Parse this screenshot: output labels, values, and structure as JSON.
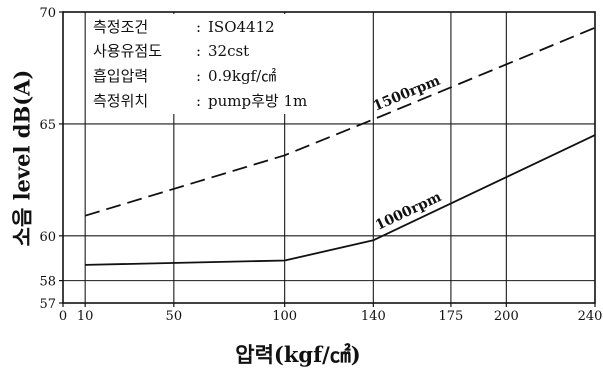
{
  "chart_data": {
    "type": "line",
    "xlabel": "압력(kgf/㎠)",
    "ylabel": "소음 level dB(A)",
    "xlim": [
      0,
      240
    ],
    "ylim": [
      57,
      70
    ],
    "x_ticks": [
      0,
      10,
      50,
      100,
      140,
      175,
      200,
      240
    ],
    "y_ticks": [
      57,
      58,
      60,
      65,
      70
    ],
    "grid": true,
    "series": [
      {
        "name": "1500rpm",
        "line_style": "dashed",
        "color": "#111111",
        "x": [
          10,
          100,
          140,
          240
        ],
        "y": [
          60.9,
          63.6,
          65.2,
          69.3
        ]
      },
      {
        "name": "1000rpm",
        "line_style": "solid",
        "color": "#111111",
        "x": [
          10,
          100,
          140,
          240
        ],
        "y": [
          58.7,
          58.9,
          59.8,
          64.5
        ]
      }
    ],
    "conditions": {
      "separator": ":",
      "rows": [
        {
          "label": "측정조건",
          "value": "ISO4412"
        },
        {
          "label": "사용유점도",
          "value": "32cst"
        },
        {
          "label": "흡입압력",
          "value": "0.9kgf/㎠"
        },
        {
          "label": "측정위치",
          "value": "pump후방 1m"
        }
      ]
    }
  }
}
